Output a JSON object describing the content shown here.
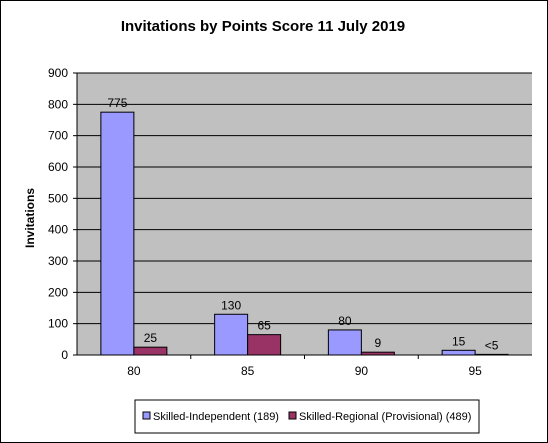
{
  "chart_data": {
    "type": "bar",
    "title": "Invitations by Points Score 11 July 2019",
    "xlabel": "",
    "ylabel": "Invitations",
    "categories": [
      "80",
      "85",
      "90",
      "95"
    ],
    "ylim": [
      0,
      900
    ],
    "yticks": [
      "0",
      "100",
      "200",
      "300",
      "400",
      "500",
      "600",
      "700",
      "800",
      "900"
    ],
    "grid": true,
    "legend_position": "bottom",
    "plot_background": "#c0c0c0",
    "series": [
      {
        "name": "Skilled-Independent (189)",
        "color": "#9999ff",
        "values": [
          775,
          130,
          80,
          15
        ],
        "labels": [
          "775",
          "130",
          "80",
          "15"
        ]
      },
      {
        "name": "Skilled-Regional (Provisional) (489)",
        "color": "#993366",
        "values": [
          25,
          65,
          9,
          2
        ],
        "labels": [
          "25",
          "65",
          "9",
          "<5"
        ]
      }
    ]
  }
}
